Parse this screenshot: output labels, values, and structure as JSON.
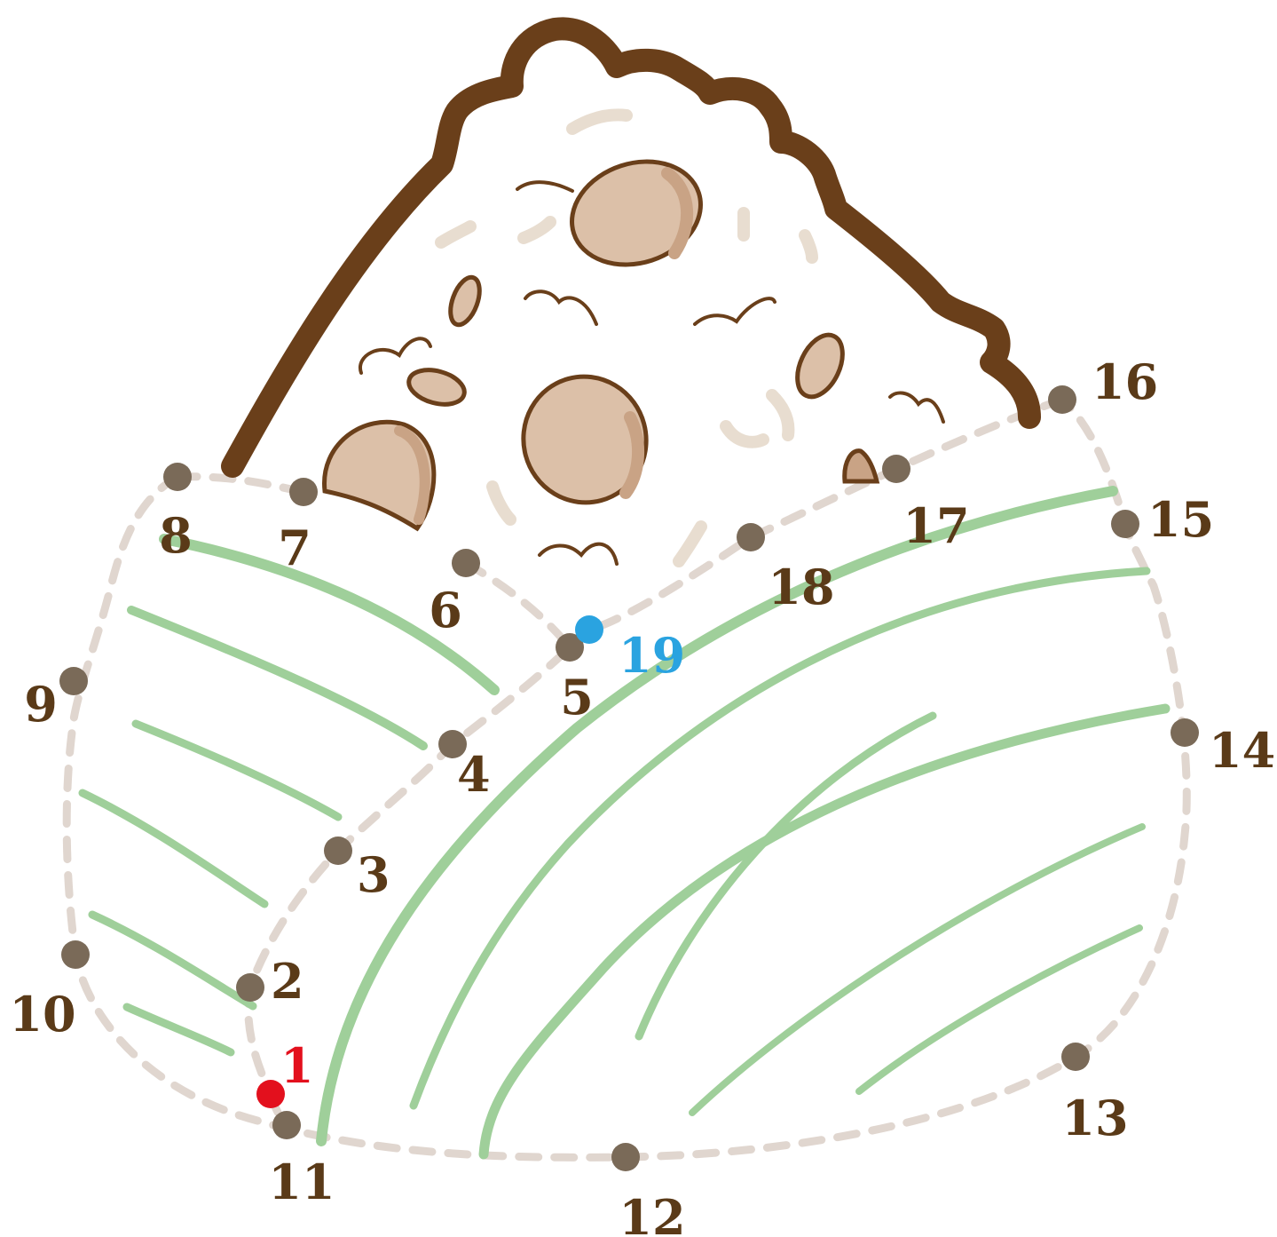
{
  "puzzle": {
    "type": "connect-the-dots",
    "start_label": "1",
    "end_label": "19",
    "colors": {
      "outline": "#6a3f1a",
      "sprout_fill": "#dcc0a8",
      "sprout_shade": "#c9a385",
      "leaf_green": "#9fcf9a",
      "guide_dash": "#e0d6cf",
      "dot": "#7a6a58",
      "label": "#5a3a18",
      "start_dot": "#e3101d",
      "end_dot": "#2aa3e0",
      "end_label": "#2aa3e0"
    },
    "dots": [
      {
        "label": "1",
        "role": "start"
      },
      {
        "label": "2",
        "role": "normal"
      },
      {
        "label": "3",
        "role": "normal"
      },
      {
        "label": "4",
        "role": "normal"
      },
      {
        "label": "5",
        "role": "normal"
      },
      {
        "label": "6",
        "role": "normal"
      },
      {
        "label": "7",
        "role": "normal"
      },
      {
        "label": "8",
        "role": "normal"
      },
      {
        "label": "9",
        "role": "normal"
      },
      {
        "label": "10",
        "role": "normal"
      },
      {
        "label": "11",
        "role": "normal"
      },
      {
        "label": "12",
        "role": "normal"
      },
      {
        "label": "13",
        "role": "normal"
      },
      {
        "label": "14",
        "role": "normal"
      },
      {
        "label": "15",
        "role": "normal"
      },
      {
        "label": "16",
        "role": "normal"
      },
      {
        "label": "17",
        "role": "normal"
      },
      {
        "label": "18",
        "role": "normal"
      },
      {
        "label": "19",
        "role": "end"
      }
    ]
  }
}
